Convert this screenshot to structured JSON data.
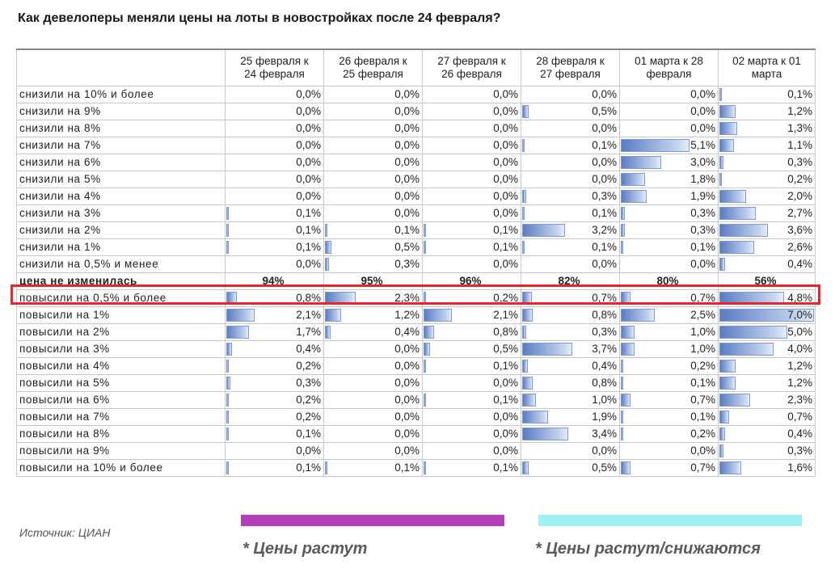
{
  "title": "Как девелоперы меняли цены на лоты в новостройках после 24 февраля?",
  "source": "Источник: ЦИАН",
  "legend": [
    {
      "label": "* Цены растут",
      "color": "#b23fb8"
    },
    {
      "label": "* Цены растут/снижаются",
      "color": "#9ff1f3"
    }
  ],
  "highlight_color": "#e8242c",
  "chart_data": {
    "type": "table",
    "title": "Как девелоперы меняли цены на лоты в новостройках после 24 февраля?",
    "columns": [
      [
        "25 февраля к",
        "24 февраля"
      ],
      [
        "26 февраля к",
        "25 февраля"
      ],
      [
        "27 февраля к",
        "26 февраля"
      ],
      [
        "28 февраля к",
        "27 февраля"
      ],
      [
        "01 марта к 28",
        "февраля"
      ],
      [
        "02 марта к 01",
        "марта"
      ]
    ],
    "rows": [
      {
        "label": "снизили на 10% и более",
        "values": [
          "0,0%",
          "0,0%",
          "0,0%",
          "0,0%",
          "0,0%",
          "0,1%"
        ]
      },
      {
        "label": "снизили на 9%",
        "values": [
          "0,0%",
          "0,0%",
          "0,0%",
          "0,5%",
          "0,0%",
          "1,2%"
        ]
      },
      {
        "label": "снизили на 8%",
        "values": [
          "0,0%",
          "0,0%",
          "0,0%",
          "0,0%",
          "0,0%",
          "1,3%"
        ]
      },
      {
        "label": "снизили на 7%",
        "values": [
          "0,0%",
          "0,0%",
          "0,0%",
          "0,1%",
          "5,1%",
          "1,1%"
        ]
      },
      {
        "label": "снизили на 6%",
        "values": [
          "0,0%",
          "0,0%",
          "0,0%",
          "0,0%",
          "3,0%",
          "0,3%"
        ]
      },
      {
        "label": "снизили на 5%",
        "values": [
          "0,0%",
          "0,0%",
          "0,0%",
          "0,0%",
          "1,8%",
          "0,2%"
        ]
      },
      {
        "label": "снизили на 4%",
        "values": [
          "0,0%",
          "0,0%",
          "0,0%",
          "0,3%",
          "1,9%",
          "2,0%"
        ]
      },
      {
        "label": "снизили на 3%",
        "values": [
          "0,1%",
          "0,0%",
          "0,0%",
          "0,1%",
          "0,3%",
          "2,7%"
        ]
      },
      {
        "label": "снизили на 2%",
        "values": [
          "0,1%",
          "0,1%",
          "0,1%",
          "3,2%",
          "0,3%",
          "3,6%"
        ]
      },
      {
        "label": "снизили на 1%",
        "values": [
          "0,1%",
          "0,5%",
          "0,1%",
          "0,1%",
          "0,1%",
          "2,6%"
        ]
      },
      {
        "label": "снизили на 0,5% и менее",
        "values": [
          "0,0%",
          "0,3%",
          "0,0%",
          "0,0%",
          "0,0%",
          "0,4%"
        ]
      },
      {
        "label": "цена не изменилась",
        "special": true,
        "values": [
          "94%",
          "95%",
          "96%",
          "82%",
          "80%",
          "56%"
        ]
      },
      {
        "label": "повысили на 0,5% и более",
        "values": [
          "0,8%",
          "2,3%",
          "0,2%",
          "0,7%",
          "0,7%",
          "4,8%"
        ]
      },
      {
        "label": "повысили на 1%",
        "values": [
          "2,1%",
          "1,2%",
          "2,1%",
          "0,8%",
          "2,5%",
          "7,0%"
        ]
      },
      {
        "label": "повысили на 2%",
        "values": [
          "1,7%",
          "0,4%",
          "0,8%",
          "0,3%",
          "1,0%",
          "5,0%"
        ]
      },
      {
        "label": "повысили на 3%",
        "values": [
          "0,4%",
          "0,0%",
          "0,5%",
          "3,7%",
          "1,0%",
          "4,0%"
        ]
      },
      {
        "label": "повысили на 4%",
        "values": [
          "0,2%",
          "0,0%",
          "0,1%",
          "0,4%",
          "0,2%",
          "1,2%"
        ]
      },
      {
        "label": "повысили на 5%",
        "values": [
          "0,3%",
          "0,0%",
          "0,0%",
          "0,8%",
          "0,1%",
          "1,2%"
        ]
      },
      {
        "label": "повысили на 6%",
        "values": [
          "0,2%",
          "0,0%",
          "0,1%",
          "1,0%",
          "0,7%",
          "2,3%"
        ]
      },
      {
        "label": "повысили на 7%",
        "values": [
          "0,2%",
          "0,0%",
          "0,0%",
          "1,9%",
          "0,1%",
          "0,7%"
        ]
      },
      {
        "label": "повысили на 8%",
        "values": [
          "0,1%",
          "0,0%",
          "0,0%",
          "3,4%",
          "0,2%",
          "0,4%"
        ]
      },
      {
        "label": "повысили на 9%",
        "values": [
          "0,0%",
          "0,0%",
          "0,0%",
          "0,0%",
          "0,0%",
          "0,3%"
        ]
      },
      {
        "label": "повысили на 10% и более",
        "values": [
          "0,1%",
          "0,1%",
          "0,1%",
          "0,5%",
          "0,7%",
          "1,6%"
        ]
      }
    ]
  }
}
